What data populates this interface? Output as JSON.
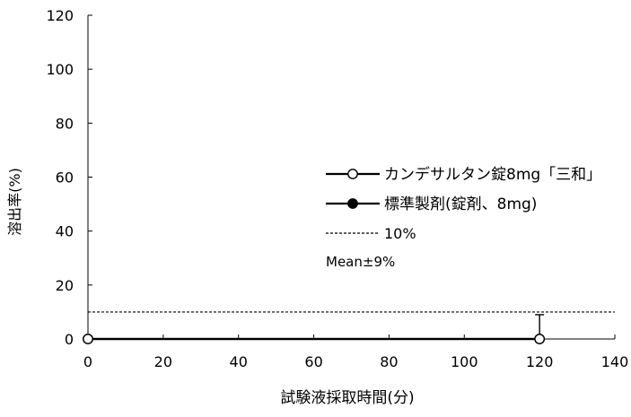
{
  "chart_data": {
    "type": "line",
    "xlabel": "試験液採取時間(分)",
    "ylabel": "溶出率(%)",
    "xlim": [
      0,
      140
    ],
    "ylim": [
      0,
      120
    ],
    "x_ticks": [
      0,
      20,
      40,
      60,
      80,
      100,
      120,
      140
    ],
    "y_ticks": [
      0,
      20,
      40,
      60,
      80,
      100,
      120
    ],
    "grid": false,
    "legend_position": "center-right",
    "series": [
      {
        "name": "カンデサルタン錠8mg「三和」",
        "marker": "open-circle",
        "line_style": "solid",
        "color": "#000000",
        "x": [
          0,
          120
        ],
        "y": [
          0,
          0
        ]
      },
      {
        "name": "標準製剤(錠剤、8mg)",
        "marker": "filled-circle",
        "line_style": "solid",
        "color": "#000000",
        "x": [
          0,
          120
        ],
        "y": [
          0,
          0
        ]
      }
    ],
    "reference_lines": [
      {
        "name": "10%",
        "line_style": "dashed",
        "y": 10
      }
    ],
    "error_bar_note": "Mean±9%",
    "error_bars": [
      {
        "x": 120,
        "y": 0,
        "plus": 9
      }
    ]
  }
}
